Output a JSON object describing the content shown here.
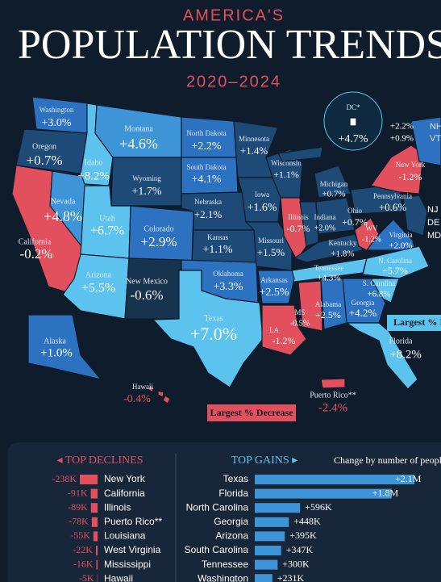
{
  "header": {
    "kicker": "AMERICA'S",
    "title": "POPULATION TRENDS",
    "years": "2020–2024"
  },
  "map": {
    "states": [
      {
        "name": "Washington",
        "change": "+3.0%"
      },
      {
        "name": "Oregon",
        "change": "+0.7%"
      },
      {
        "name": "Idaho",
        "change": "+8.2%"
      },
      {
        "name": "Montana",
        "change": "+4.6%"
      },
      {
        "name": "North Dakota",
        "change": "+2.2%"
      },
      {
        "name": "Minnesota",
        "change": "+1.4%"
      },
      {
        "name": "Wyoming",
        "change": "+1.7%"
      },
      {
        "name": "South Dakota",
        "change": "+4.1%"
      },
      {
        "name": "Wisconsin",
        "change": "+1.1%"
      },
      {
        "name": "Michigan",
        "change": "+0.7%"
      },
      {
        "name": "Iowa",
        "change": "+1.6%"
      },
      {
        "name": "Nebraska",
        "change": "+2.1%"
      },
      {
        "name": "Nevada",
        "change": "+4.8%"
      },
      {
        "name": "Utah",
        "change": "+6.7%"
      },
      {
        "name": "Colorado",
        "change": "+2.9%"
      },
      {
        "name": "California",
        "change": "-0.2%"
      },
      {
        "name": "Kansas",
        "change": "+1.1%"
      },
      {
        "name": "Illinois",
        "change": "-0.7%"
      },
      {
        "name": "Indiana",
        "change": "+2.0%"
      },
      {
        "name": "Ohio",
        "change": "+0.7%"
      },
      {
        "name": "Pennsylvania",
        "change": "+0.6%"
      },
      {
        "name": "New York",
        "change": "-1.2%"
      },
      {
        "name": "Missouri",
        "change": "+1.5%"
      },
      {
        "name": "Kentucky",
        "change": "+1.8%"
      },
      {
        "name": "WV",
        "change": "-1.2%"
      },
      {
        "name": "Virginia",
        "change": "+2.0%"
      },
      {
        "name": "Arizona",
        "change": "+5.5%"
      },
      {
        "name": "New Mexico",
        "change": "-0.6%"
      },
      {
        "name": "Oklahoma",
        "change": "+3.3%"
      },
      {
        "name": "Arkansas",
        "change": "+2.5%"
      },
      {
        "name": "Tennessee",
        "change": "+4.3%"
      },
      {
        "name": "N. Carolina",
        "change": "+5.7%"
      },
      {
        "name": "S. Carolina",
        "change": "+6.8%"
      },
      {
        "name": "Georgia",
        "change": "+4.2%"
      },
      {
        "name": "Alabama",
        "change": "+2.5%"
      },
      {
        "name": "MS",
        "change": "-0.5%"
      },
      {
        "name": "LA",
        "change": "-1.2%"
      },
      {
        "name": "Texas",
        "change": "+7.0%"
      },
      {
        "name": "Florida",
        "change": "+8.2%"
      },
      {
        "name": "Alaska",
        "change": "+1.0%"
      },
      {
        "name": "Hawaii",
        "change": "-0.4%"
      },
      {
        "name": "Puerto Rico**",
        "change": "-2.4%"
      },
      {
        "name": "DC*",
        "change": "+4.7%"
      },
      {
        "name": "NH",
        "change": "+2.2%"
      },
      {
        "name": "VT",
        "change": "+0.9%"
      }
    ],
    "abbreviations": [
      "NJ",
      "DE",
      "MD"
    ],
    "callouts": {
      "increase": "Largest % Increase",
      "decrease": "Largest % Decrease"
    }
  },
  "rankings": {
    "note": "Change by number of people",
    "declines": {
      "type": "bar",
      "title": "◂ TOP DECLINES",
      "color": "#e2505e",
      "categories": [
        "New York",
        "California",
        "Illinois",
        "Puerto Rico**",
        "Louisiana",
        "West Virginia",
        "Mississippi",
        "Hawaii"
      ],
      "values": [
        -238000,
        -91000,
        -89000,
        -78000,
        -55000,
        -22000,
        -16000,
        -5000
      ],
      "value_labels": [
        "-238K",
        "-91K",
        "-89K",
        "-78K",
        "-55K",
        "-22K",
        "-16K",
        "-5K"
      ]
    },
    "gains": {
      "type": "bar",
      "title": "TOP GAINS ▸",
      "color": "#3d95d8",
      "categories": [
        "Texas",
        "Florida",
        "North Carolina",
        "Georgia",
        "Arizona",
        "South Carolina",
        "Tennessee",
        "Washington"
      ],
      "values": [
        2100000,
        1800000,
        596000,
        448000,
        395000,
        347000,
        300000,
        231000
      ],
      "value_labels": [
        "+2.1M",
        "+1.8M",
        "+596K",
        "+448K",
        "+395K",
        "+347K",
        "+300K",
        "+231K"
      ]
    }
  }
}
